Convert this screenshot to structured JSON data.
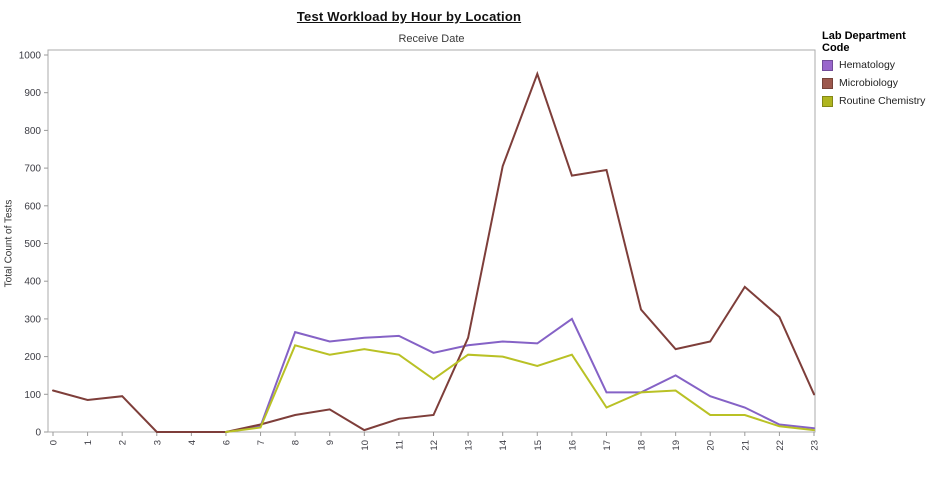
{
  "chart_data": {
    "type": "line",
    "title": "Test Workload by Hour by Location",
    "subtitle": "Receive Date",
    "xlabel": "",
    "ylabel": "Total Count of Tests",
    "legend_title": "Lab Department Code",
    "legend_position": "right",
    "grid": false,
    "categories": [
      "0",
      "1",
      "2",
      "3",
      "4",
      "6",
      "7",
      "8",
      "9",
      "10",
      "11",
      "12",
      "13",
      "14",
      "15",
      "16",
      "17",
      "18",
      "19",
      "20",
      "21",
      "22",
      "23"
    ],
    "ylim": [
      0,
      1000
    ],
    "ytick_step": 100,
    "series": [
      {
        "name": "Hematology",
        "color": "#8562C6",
        "swatch": "#9966CC",
        "values": [
          null,
          null,
          null,
          null,
          null,
          0,
          15,
          265,
          240,
          250,
          255,
          210,
          230,
          240,
          235,
          300,
          105,
          105,
          150,
          95,
          65,
          20,
          10
        ]
      },
      {
        "name": "Microbiology",
        "color": "#7E3E3A",
        "swatch": "#9C584D",
        "values": [
          110,
          85,
          95,
          0,
          0,
          0,
          20,
          45,
          60,
          5,
          35,
          45,
          250,
          705,
          950,
          680,
          695,
          325,
          220,
          240,
          385,
          305,
          100
        ]
      },
      {
        "name": "Routine Chemistry",
        "color": "#B9C125",
        "swatch": "#AFB51F",
        "values": [
          null,
          null,
          null,
          null,
          null,
          0,
          12,
          230,
          205,
          220,
          205,
          140,
          205,
          200,
          175,
          205,
          65,
          105,
          110,
          45,
          45,
          15,
          5
        ]
      }
    ]
  }
}
